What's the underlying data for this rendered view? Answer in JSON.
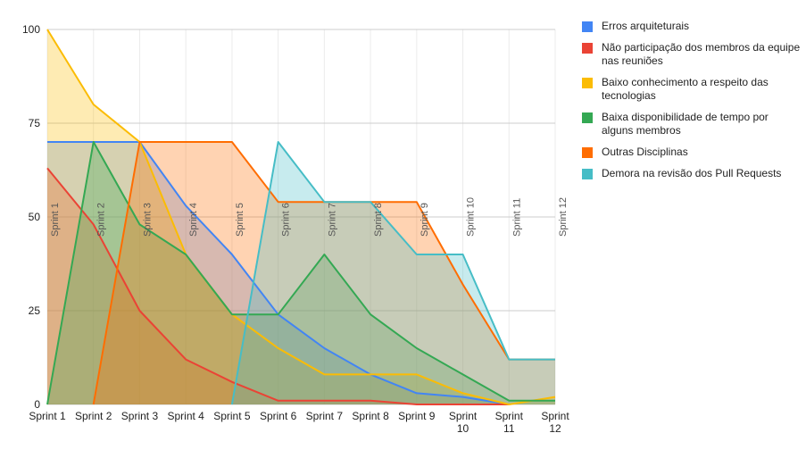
{
  "chart_data": {
    "type": "area",
    "title": "",
    "xlabel": "",
    "ylabel": "",
    "categories": [
      "Sprint 1",
      "Sprint 2",
      "Sprint 3",
      "Sprint 4",
      "Sprint 5",
      "Sprint 6",
      "Sprint 7",
      "Sprint 8",
      "Sprint 9",
      "Sprint 10",
      "Sprint 11",
      "Sprint 12"
    ],
    "x_tick_labels": [
      [
        "Sprint 1"
      ],
      [
        "Sprint 2"
      ],
      [
        "Sprint 3"
      ],
      [
        "Sprint 4"
      ],
      [
        "Sprint 5"
      ],
      [
        "Sprint 6"
      ],
      [
        "Sprint 7"
      ],
      [
        "Sprint 8"
      ],
      [
        "Sprint 9"
      ],
      [
        "Sprint",
        "10"
      ],
      [
        "Sprint",
        "11"
      ],
      [
        "Sprint",
        "12"
      ]
    ],
    "ylim": [
      0,
      100
    ],
    "y_ticks": [
      0,
      25,
      50,
      75,
      100
    ],
    "grid": true,
    "legend_position": "right",
    "series": [
      {
        "name": "Erros arquiteturais",
        "color": "#4285f4",
        "values": [
          70,
          70,
          70,
          53,
          40,
          24,
          15,
          8,
          3,
          2,
          0,
          null
        ]
      },
      {
        "name": "Não participação dos membros da equipe nas reuniões",
        "color": "#ea4335",
        "values": [
          63,
          48,
          25,
          12,
          6,
          1,
          1,
          1,
          0,
          0,
          0,
          null
        ]
      },
      {
        "name": "Baixo conhecimento a respeito das tecnologias",
        "color": "#fbbc04",
        "values": [
          100,
          80,
          70,
          40,
          24,
          15,
          8,
          8,
          8,
          3,
          0,
          2
        ]
      },
      {
        "name": "Baixa disponibilidade de tempo por alguns membros",
        "color": "#34a853",
        "values": [
          0,
          70,
          48,
          40,
          24,
          24,
          40,
          24,
          15,
          8,
          1,
          1
        ]
      },
      {
        "name": "Outras Disciplinas",
        "color": "#ff6d01",
        "values": [
          null,
          0,
          70,
          70,
          70,
          54,
          54,
          54,
          54,
          32,
          12,
          12
        ]
      },
      {
        "name": "Demora na revisão dos Pull Requests",
        "color": "#46bdc6",
        "values": [
          null,
          null,
          null,
          null,
          0,
          70,
          54,
          54,
          40,
          40,
          12,
          12
        ]
      }
    ]
  }
}
